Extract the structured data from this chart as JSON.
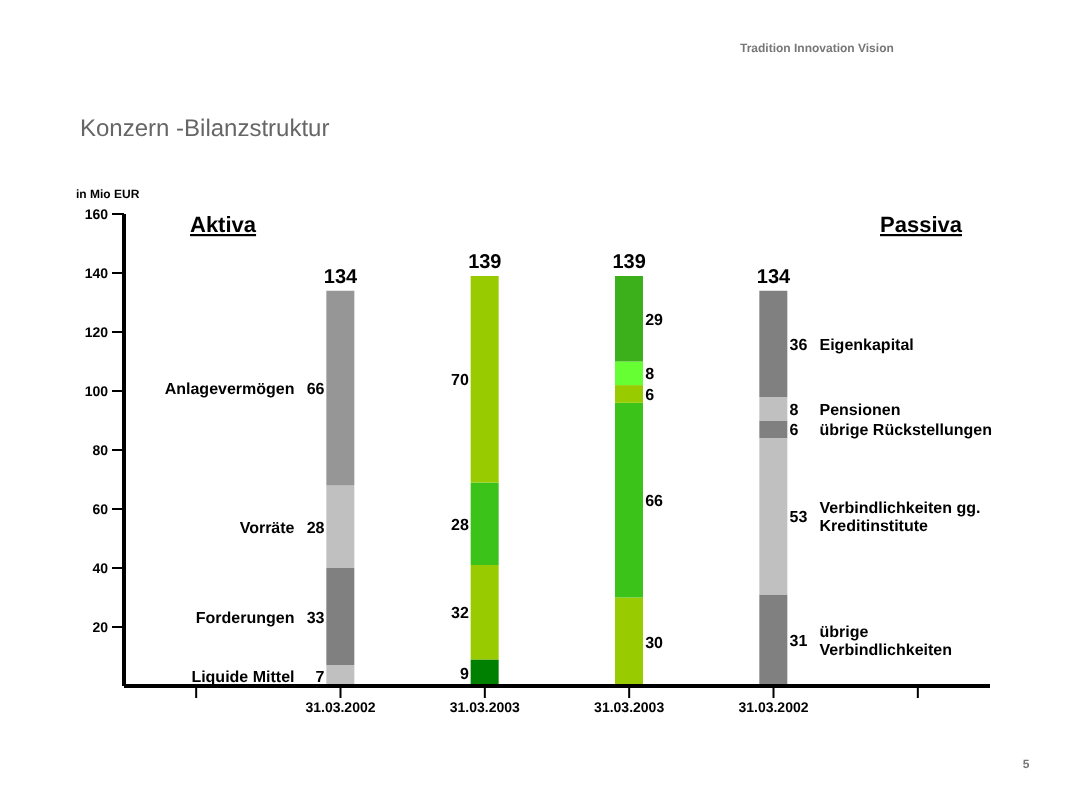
{
  "chart_data": {
    "type": "bar",
    "title": "Konzern -Bilanzstruktur",
    "ylabel": "in Mio EUR",
    "annotations": [
      "Aktiva",
      "Passiva",
      "Tradition Innovation Vision",
      "5"
    ],
    "categories": [
      null,
      "31.03.2002",
      "31.03.2003",
      "31.03.2003",
      "31.03.2002",
      null
    ],
    "stacked": true,
    "data_labels": true,
    "legend": false,
    "grid": false,
    "ylim": [
      0,
      160
    ],
    "yticks": [
      20,
      40,
      60,
      80,
      100,
      120,
      140,
      160
    ],
    "totals": [
      null,
      "134",
      "139",
      "139",
      "134",
      null
    ],
    "series": [
      {
        "name": "Liquide Mittel",
        "values": [
          null,
          7,
          9,
          null,
          null,
          null
        ],
        "colors": [
          "#c0c0c0",
          "#c0c0c0",
          "#008000",
          "#c0c0c0",
          "#c0c0c0",
          "#c0c0c0"
        ]
      },
      {
        "name": "Forderungen",
        "values": [
          null,
          33,
          32,
          null,
          null,
          null
        ],
        "colors": [
          "#808080",
          "#808080",
          "#99cc00",
          "#808080",
          "#808080",
          "#808080"
        ]
      },
      {
        "name": "Vorräte",
        "values": [
          null,
          28,
          28,
          null,
          null,
          null
        ],
        "colors": [
          "#c0c0c0",
          "#c0c0c0",
          "#3cc31a",
          "#c0c0c0",
          "#c0c0c0",
          "#c0c0c0"
        ]
      },
      {
        "name": "Anlagevermögen",
        "values": [
          null,
          66,
          70,
          null,
          null,
          null
        ],
        "colors": [
          "#969696",
          "#969696",
          "#99cc00",
          "#969696",
          "#969696",
          "#969696"
        ]
      },
      {
        "name": "übrige Verbindlichkeiten",
        "values": [
          null,
          null,
          null,
          30,
          31,
          null
        ],
        "colors": [
          "#808080",
          "#808080",
          "#808080",
          "#99cc00",
          "#808080",
          "#808080"
        ]
      },
      {
        "name": "Verbindlichkeiten gg. Kreditinstitute",
        "values": [
          null,
          null,
          null,
          66,
          53,
          null
        ],
        "colors": [
          "#c0c0c0",
          "#c0c0c0",
          "#c0c0c0",
          "#3cc31a",
          "#c0c0c0",
          "#c0c0c0"
        ]
      },
      {
        "name": "übrige Rückstellungen",
        "values": [
          null,
          null,
          null,
          6,
          6,
          null
        ],
        "colors": [
          "#808080",
          "#808080",
          "#808080",
          "#99cc00",
          "#808080",
          "#808080"
        ]
      },
      {
        "name": "Pensionen",
        "values": [
          null,
          null,
          null,
          8,
          8,
          null
        ],
        "colors": [
          "#c0c0c0",
          "#c0c0c0",
          "#c0c0c0",
          "#66ff33",
          "#c0c0c0",
          "#c0c0c0"
        ]
      },
      {
        "name": "Eigenkapital",
        "values": [
          null,
          null,
          null,
          29,
          36,
          null
        ],
        "colors": [
          "#808080",
          "#808080",
          "#808080",
          "#3cb01a",
          "#808080",
          "#808080"
        ]
      }
    ]
  }
}
